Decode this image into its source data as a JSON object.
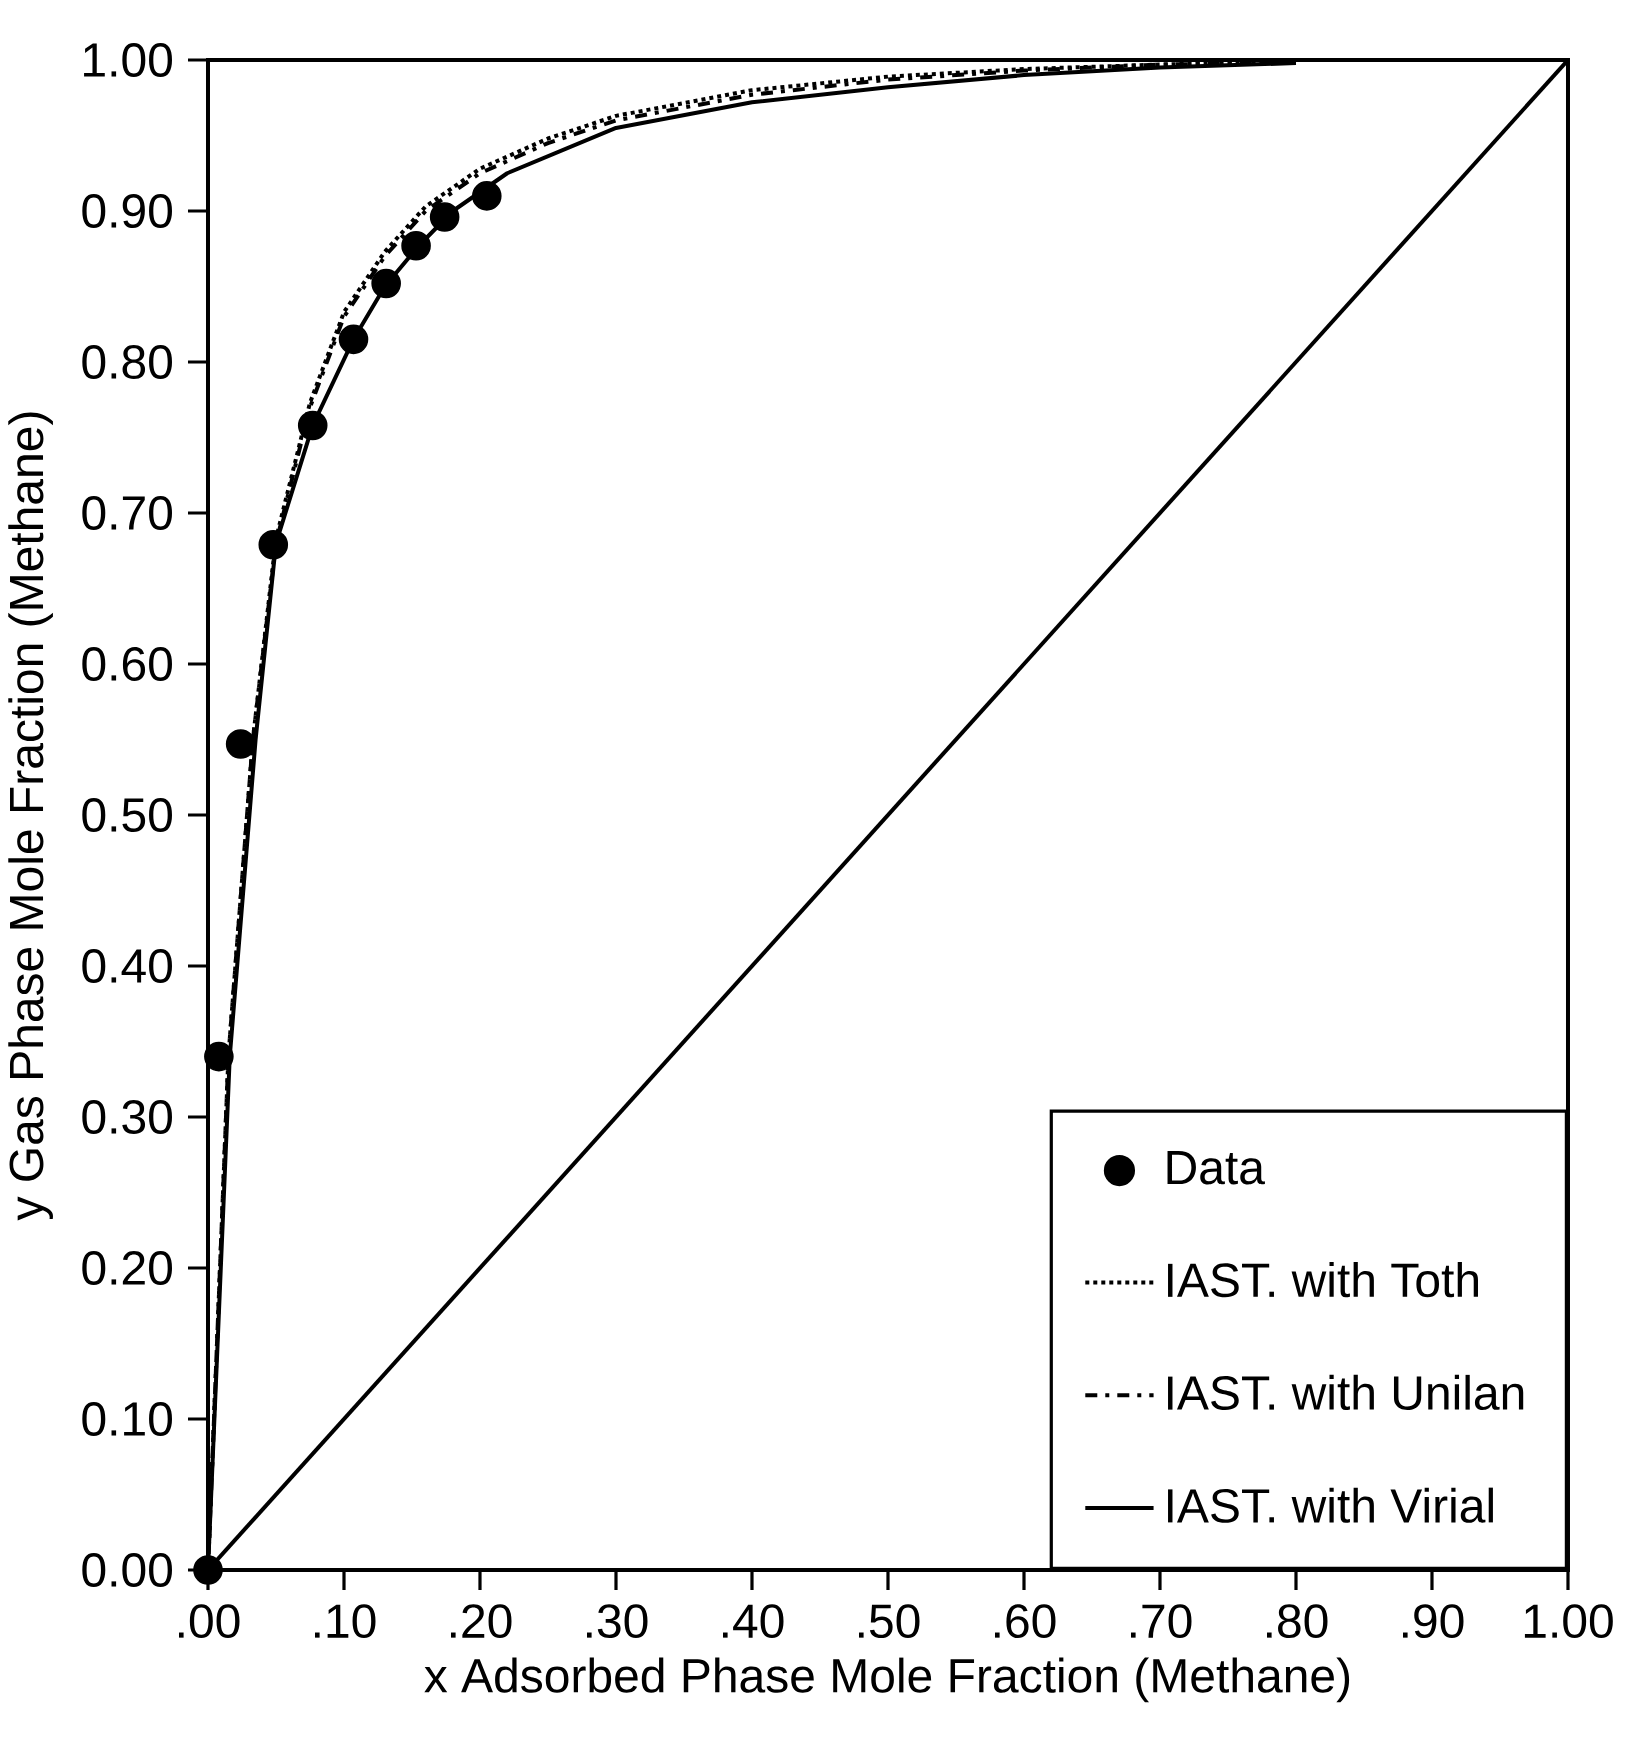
{
  "chart_data": {
    "type": "line",
    "xlabel": "x Adsorbed Phase Mole Fraction (Methane)",
    "ylabel": "y Gas Phase Mole Fraction (Methane)",
    "xlim": [
      0,
      1
    ],
    "ylim": [
      0,
      1
    ],
    "xticks": [
      {
        "value": 0,
        "label": ".00"
      },
      {
        "value": 0.1,
        "label": ".10"
      },
      {
        "value": 0.2,
        "label": ".20"
      },
      {
        "value": 0.3,
        "label": ".30"
      },
      {
        "value": 0.4,
        "label": ".40"
      },
      {
        "value": 0.5,
        "label": ".50"
      },
      {
        "value": 0.6,
        "label": ".60"
      },
      {
        "value": 0.7,
        "label": ".70"
      },
      {
        "value": 0.8,
        "label": ".80"
      },
      {
        "value": 0.9,
        "label": ".90"
      },
      {
        "value": 1,
        "label": "1.00"
      }
    ],
    "yticks": [
      {
        "value": 0,
        "label": "0.00"
      },
      {
        "value": 0.1,
        "label": "0.10"
      },
      {
        "value": 0.2,
        "label": "0.20"
      },
      {
        "value": 0.3,
        "label": "0.30"
      },
      {
        "value": 0.4,
        "label": "0.40"
      },
      {
        "value": 0.5,
        "label": "0.50"
      },
      {
        "value": 0.6,
        "label": "0.60"
      },
      {
        "value": 0.7,
        "label": "0.70"
      },
      {
        "value": 0.8,
        "label": "0.80"
      },
      {
        "value": 0.9,
        "label": "0.90"
      },
      {
        "value": 1,
        "label": "1.00"
      }
    ],
    "legend": "bottom right",
    "series": [
      {
        "name": "Data",
        "type": "scatter",
        "marker": "circle",
        "color": "#000000",
        "x": [
          0,
          0.008,
          0.024,
          0.048,
          0.077,
          0.107,
          0.131,
          0.153,
          0.174,
          0.205
        ],
        "values": [
          0,
          0.34,
          0.547,
          0.679,
          0.758,
          0.815,
          0.852,
          0.877,
          0.896,
          0.91
        ]
      },
      {
        "name": "IAST. with Toth",
        "line_style": "dotted",
        "color": "#000000",
        "x": [
          0,
          0.015,
          0.033,
          0.05,
          0.075,
          0.1,
          0.13,
          0.16,
          0.2,
          0.25,
          0.3,
          0.4,
          0.5,
          0.6,
          0.7,
          0.8
        ],
        "values": [
          0,
          0.34,
          0.55,
          0.683,
          0.773,
          0.833,
          0.873,
          0.903,
          0.928,
          0.948,
          0.963,
          0.98,
          0.989,
          0.994,
          0.997,
          0.999
        ]
      },
      {
        "name": "IAST. with Unilan",
        "line_style": "dashdot",
        "color": "#000000",
        "x": [
          0,
          0.015,
          0.033,
          0.05,
          0.075,
          0.1,
          0.13,
          0.16,
          0.2,
          0.25,
          0.3,
          0.4,
          0.5,
          0.6,
          0.7,
          0.78
        ],
        "values": [
          0,
          0.34,
          0.55,
          0.68,
          0.77,
          0.83,
          0.87,
          0.9,
          0.925,
          0.945,
          0.96,
          0.977,
          0.987,
          0.993,
          0.997,
          0.998
        ]
      },
      {
        "name": "IAST. with Virial",
        "line_style": "solid",
        "color": "#000000",
        "x": [
          0,
          0.016,
          0.035,
          0.05,
          0.077,
          0.107,
          0.13,
          0.155,
          0.18,
          0.22,
          0.3,
          0.4,
          0.5,
          0.6,
          0.7,
          0.8
        ],
        "values": [
          0,
          0.34,
          0.55,
          0.68,
          0.758,
          0.815,
          0.85,
          0.877,
          0.9,
          0.925,
          0.955,
          0.972,
          0.982,
          0.99,
          0.995,
          0.998
        ]
      },
      {
        "line_style": "solid",
        "color": "#000000",
        "x": [
          0,
          1
        ],
        "values": [
          0,
          1
        ]
      }
    ]
  }
}
